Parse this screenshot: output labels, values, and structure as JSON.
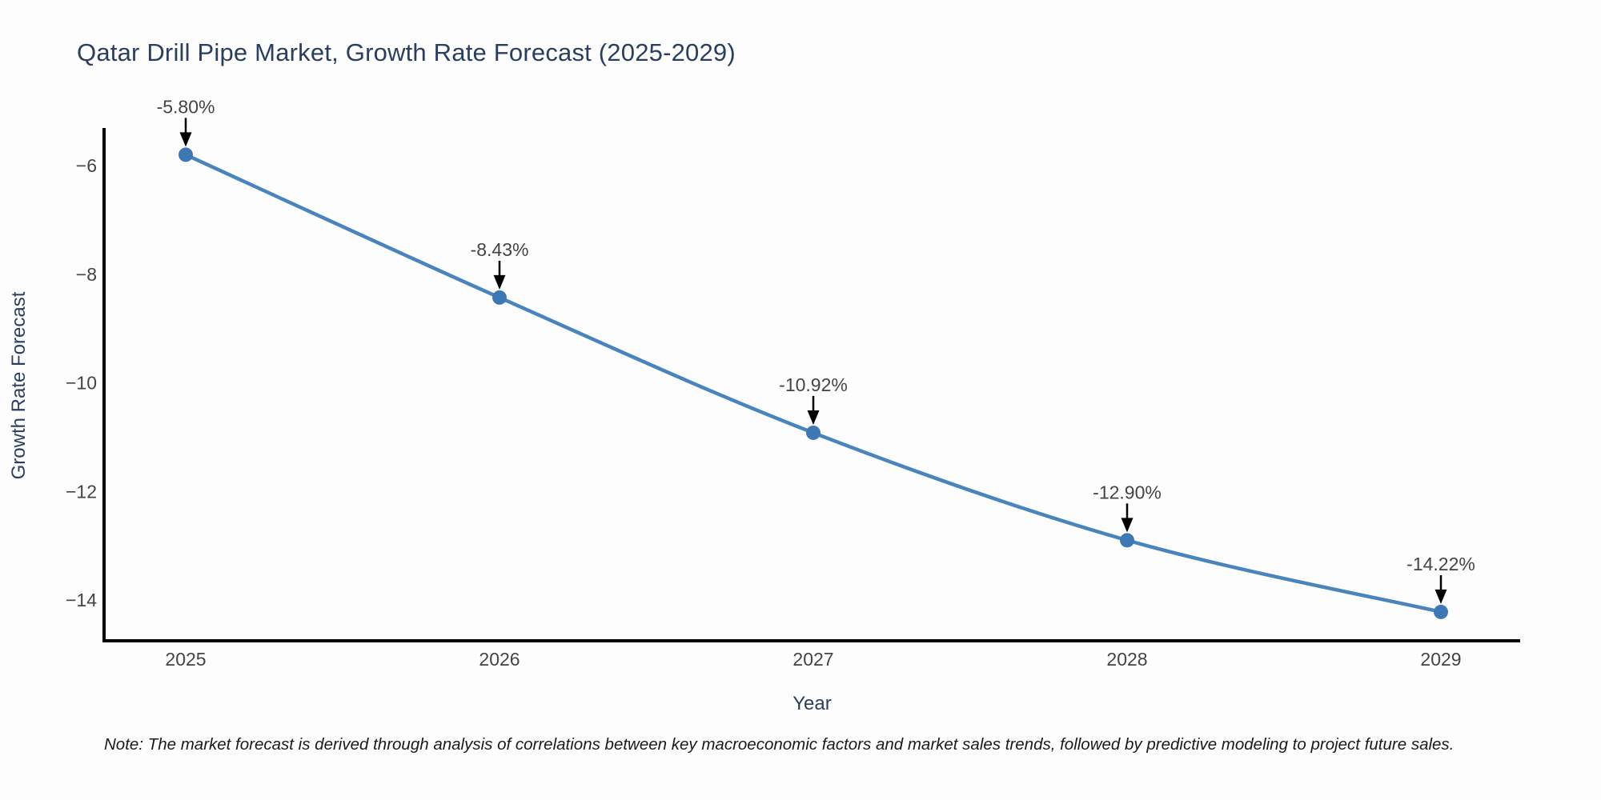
{
  "title": {
    "text": "Qatar Drill Pipe Market, Growth Rate Forecast (2025-2029)"
  },
  "axes": {
    "x_title": "Year",
    "y_title": "Growth Rate Forecast"
  },
  "note": {
    "text": "Note: The market forecast is derived through analysis of correlations between key macroeconomic factors and market sales trends, followed by predictive modeling to project future sales."
  },
  "chart_data": {
    "type": "line",
    "title": "Qatar Drill Pipe Market, Growth Rate Forecast (2025-2029)",
    "xlabel": "Year",
    "ylabel": "Growth Rate Forecast",
    "x": [
      2025,
      2026,
      2027,
      2028,
      2029
    ],
    "values": [
      -5.8,
      -8.43,
      -10.92,
      -12.9,
      -14.22
    ],
    "point_labels": [
      "-5.80%",
      "-8.43%",
      "-10.92%",
      "-12.90%",
      "-14.22%"
    ],
    "x_tick_labels": [
      "2025",
      "2026",
      "2027",
      "2028",
      "2029"
    ],
    "y_ticks": [
      -6,
      -8,
      -10,
      -12,
      -14
    ],
    "y_tick_labels": [
      "−6",
      "−8",
      "−10",
      "−12",
      "−14"
    ],
    "xlim": [
      2024.74,
      2029.25
    ],
    "ylim": [
      -14.75,
      -5.31
    ],
    "grid": false,
    "legend": "none",
    "annotations_have_arrows": true
  },
  "style": {
    "background_color": "#fdfdfd",
    "line_color": "#4a84bd",
    "marker_color": "#3d78b4",
    "axis_line_color": "#000000",
    "tick_label_color": "#444444",
    "annotation_color": "#444444",
    "arrow_color": "#000000",
    "heading_color": "#2a3f5f",
    "note_color": "#1a1a1a"
  }
}
